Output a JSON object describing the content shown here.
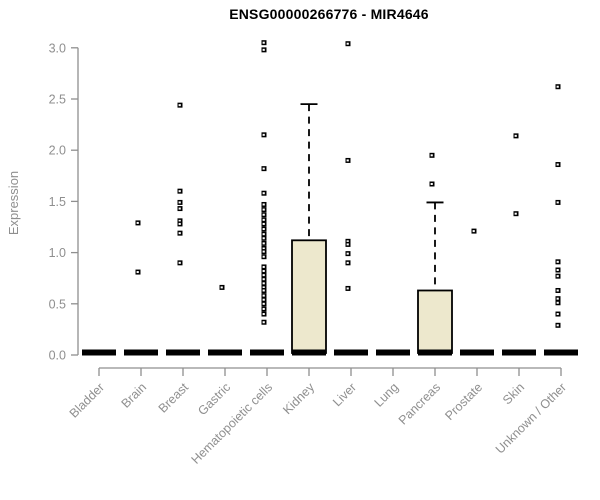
{
  "page": {
    "background": "#ffffff"
  },
  "chart_data": {
    "type": "boxplot",
    "title": "ENSG00000266776 - MIR4646",
    "ylabel": "Expression",
    "ylim": [
      0,
      3.1
    ],
    "yticks": [
      0.0,
      0.5,
      1.0,
      1.5,
      2.0,
      2.5,
      3.0
    ],
    "grid": false,
    "legend": "none",
    "categories": [
      "Bladder",
      "Brain",
      "Breast",
      "Gastric",
      "Hematopoietic cells",
      "Kidney",
      "Liver",
      "Lung",
      "Pancreas",
      "Prostate",
      "Skin",
      "Unknown / Other"
    ],
    "series": [
      {
        "category": "Bladder",
        "median": 0,
        "q1": 0,
        "q3": 0,
        "whisker_high": 0,
        "outliers": []
      },
      {
        "category": "Brain",
        "median": 0,
        "q1": 0,
        "q3": 0,
        "whisker_high": 0,
        "outliers": [
          1.29,
          0.81
        ]
      },
      {
        "category": "Breast",
        "median": 0,
        "q1": 0,
        "q3": 0,
        "whisker_high": 0,
        "outliers": [
          2.44,
          1.6,
          1.49,
          1.43,
          1.31,
          1.28,
          1.19,
          0.9
        ]
      },
      {
        "category": "Gastric",
        "median": 0,
        "q1": 0,
        "q3": 0,
        "whisker_high": 0,
        "outliers": [
          0.66
        ]
      },
      {
        "category": "Hematopoietic cells",
        "median": 0,
        "q1": 0,
        "q3": 0,
        "whisker_high": 0,
        "outliers": [
          3.05,
          2.98,
          2.15,
          1.82,
          1.58,
          1.47,
          1.42,
          1.37,
          1.32,
          1.28,
          1.23,
          1.18,
          1.14,
          1.09,
          1.04,
          1.01,
          0.96,
          0.86,
          0.82,
          0.78,
          0.74,
          0.7,
          0.66,
          0.63,
          0.58,
          0.54,
          0.5,
          0.45,
          0.4,
          0.32
        ]
      },
      {
        "category": "Kidney",
        "median": 0,
        "q1": 0,
        "q3": 1.12,
        "whisker_high": 2.45,
        "outliers": []
      },
      {
        "category": "Liver",
        "median": 0,
        "q1": 0,
        "q3": 0,
        "whisker_high": 0,
        "outliers": [
          3.04,
          1.9,
          1.11,
          1.08,
          0.99,
          0.9,
          0.65
        ]
      },
      {
        "category": "Lung",
        "median": 0,
        "q1": 0,
        "q3": 0,
        "whisker_high": 0,
        "outliers": []
      },
      {
        "category": "Pancreas",
        "median": 0,
        "q1": 0,
        "q3": 0.63,
        "whisker_high": 1.49,
        "outliers": [
          1.95,
          1.67
        ]
      },
      {
        "category": "Prostate",
        "median": 0,
        "q1": 0,
        "q3": 0,
        "whisker_high": 0,
        "outliers": [
          1.21
        ]
      },
      {
        "category": "Skin",
        "median": 0,
        "q1": 0,
        "q3": 0,
        "whisker_high": 0,
        "outliers": [
          2.14,
          1.38
        ]
      },
      {
        "category": "Unknown / Other",
        "median": 0,
        "q1": 0,
        "q3": 0,
        "whisker_high": 0,
        "outliers": [
          2.62,
          1.86,
          1.49,
          0.91,
          0.83,
          0.77,
          0.63,
          0.55,
          0.51,
          0.4,
          0.29
        ]
      }
    ],
    "colors": {
      "box_fill": "#ede8cd",
      "box_stroke": "#000000",
      "median": "#000000",
      "outlier": "#000000",
      "axis": "#8f8f8f",
      "tick_label": "#8f8f8f",
      "title": "#000000"
    }
  }
}
